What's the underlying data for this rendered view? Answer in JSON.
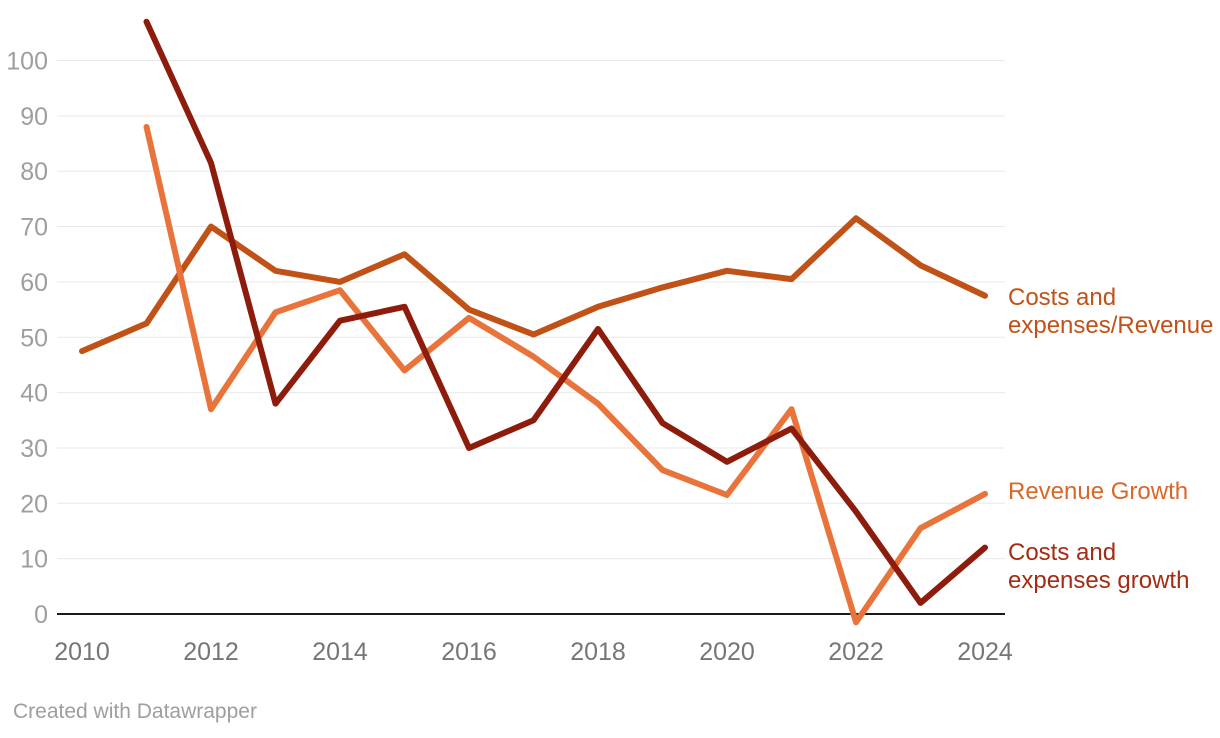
{
  "chart_data": {
    "type": "line",
    "title": "",
    "xlabel": "",
    "ylabel": "",
    "xlim": [
      2010,
      2024
    ],
    "ylim": [
      0,
      100
    ],
    "grid": "horizontal",
    "legend_position": "right-end-labels",
    "x_ticks": [
      2010,
      2012,
      2014,
      2016,
      2018,
      2020,
      2022,
      2024
    ],
    "y_ticks": [
      0,
      10,
      20,
      30,
      40,
      50,
      60,
      70,
      80,
      90,
      100
    ],
    "series": [
      {
        "name": "Costs and expenses/Revenue",
        "label_lines": [
          "Costs and",
          "expenses/Revenue"
        ],
        "color": "#c05217",
        "label_color": "#c05217",
        "start_year": 2010,
        "values": [
          47.5,
          52.5,
          70,
          62,
          60,
          65,
          55,
          50.5,
          55.5,
          59,
          62,
          60.5,
          71.5,
          63,
          57.5
        ]
      },
      {
        "name": "Revenue Growth",
        "label_lines": [
          "Revenue Growth"
        ],
        "color": "#e8743b",
        "label_color": "#d96728",
        "start_year": 2011,
        "values": [
          88,
          37,
          54.5,
          58.5,
          44,
          53.5,
          46.5,
          38,
          26,
          21.5,
          37,
          -1.5,
          15.5,
          21.7
        ]
      },
      {
        "name": "Costs and expenses growth",
        "label_lines": [
          "Costs and",
          "expenses growth"
        ],
        "color": "#8e1c0c",
        "label_color": "#a32c12",
        "start_year": 2011,
        "values": [
          107,
          81.5,
          38,
          53,
          55.5,
          30,
          35,
          51.5,
          34.5,
          27.5,
          33.5,
          18.5,
          2,
          12
        ]
      }
    ]
  },
  "footer": {
    "credit": "Created with Datawrapper"
  }
}
